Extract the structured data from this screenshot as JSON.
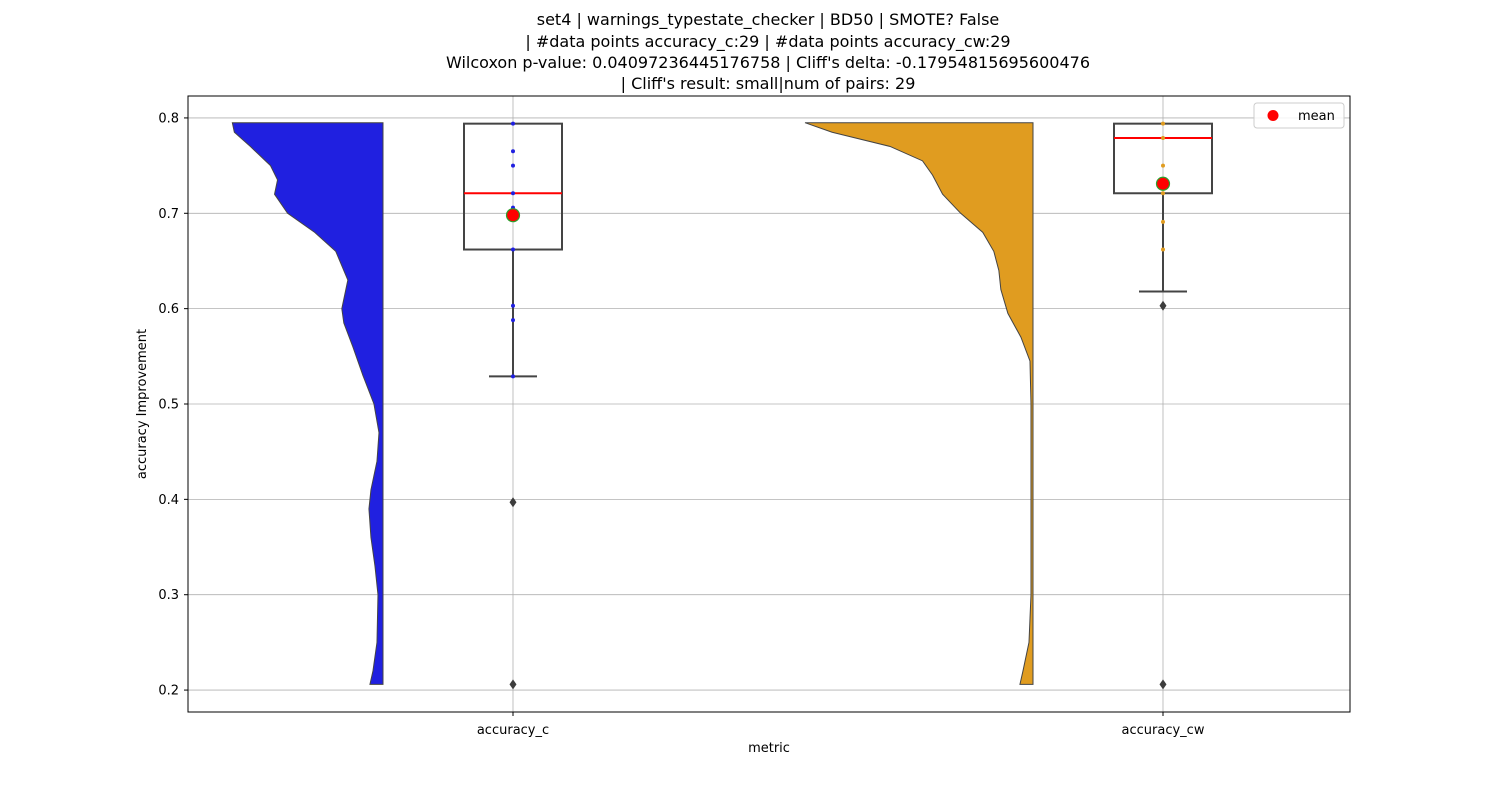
{
  "chart_data": {
    "type": "violin",
    "title_lines": [
      "set4 | warnings_typestate_checker | BD50 | SMOTE? False",
      "| #data points accuracy_c:29 | #data points accuracy_cw:29",
      "Wilcoxon p-value: 0.04097236445176758 | Cliff's delta: -0.17954815695600476",
      "| Cliff's result: small|num of pairs: 29"
    ],
    "xlabel": "metric",
    "ylabel": "accuracy Improvement",
    "categories": [
      "accuracy_c",
      "accuracy_cw"
    ],
    "ylim": [
      0.177,
      0.823
    ],
    "yticks": [
      "0.2",
      "0.3",
      "0.4",
      "0.5",
      "0.6",
      "0.7",
      "0.8"
    ],
    "ytick_values": [
      0.2,
      0.3,
      0.4,
      0.5,
      0.6,
      0.7,
      0.8
    ],
    "grid": true,
    "legend": {
      "position": "upper right",
      "label": "mean",
      "color": "#ff0000"
    },
    "series": [
      {
        "category": "accuracy_c",
        "violin_color": "#2020e0",
        "violin_density": [
          [
            0.206,
            0.013
          ],
          [
            0.22,
            0.01
          ],
          [
            0.25,
            0.006
          ],
          [
            0.3,
            0.005
          ],
          [
            0.33,
            0.008
          ],
          [
            0.36,
            0.012
          ],
          [
            0.39,
            0.014
          ],
          [
            0.41,
            0.012
          ],
          [
            0.44,
            0.006
          ],
          [
            0.47,
            0.004
          ],
          [
            0.5,
            0.009
          ],
          [
            0.53,
            0.02
          ],
          [
            0.56,
            0.03
          ],
          [
            0.585,
            0.039
          ],
          [
            0.6,
            0.041
          ],
          [
            0.63,
            0.035
          ],
          [
            0.66,
            0.047
          ],
          [
            0.68,
            0.068
          ],
          [
            0.7,
            0.095
          ],
          [
            0.72,
            0.108
          ],
          [
            0.735,
            0.105
          ],
          [
            0.75,
            0.112
          ],
          [
            0.77,
            0.132
          ],
          [
            0.785,
            0.148
          ],
          [
            0.795,
            0.15
          ]
        ],
        "box": {
          "q1": 0.662,
          "median": 0.721,
          "q3": 0.794,
          "whisker_low": 0.529,
          "whisker_high": 0.794
        },
        "mean": 0.698,
        "outliers": [
          0.397,
          0.206
        ],
        "points": [
          0.794,
          0.765,
          0.75,
          0.721,
          0.706,
          0.662,
          0.603,
          0.588,
          0.529
        ]
      },
      {
        "category": "accuracy_cw",
        "violin_color": "#e09c20",
        "violin_density": [
          [
            0.206,
            0.013
          ],
          [
            0.22,
            0.01
          ],
          [
            0.25,
            0.004
          ],
          [
            0.3,
            0.002
          ],
          [
            0.4,
            0.002
          ],
          [
            0.5,
            0.002
          ],
          [
            0.545,
            0.003
          ],
          [
            0.57,
            0.012
          ],
          [
            0.595,
            0.025
          ],
          [
            0.62,
            0.032
          ],
          [
            0.64,
            0.034
          ],
          [
            0.66,
            0.039
          ],
          [
            0.68,
            0.05
          ],
          [
            0.7,
            0.072
          ],
          [
            0.72,
            0.09
          ],
          [
            0.74,
            0.1
          ],
          [
            0.755,
            0.11
          ],
          [
            0.77,
            0.142
          ],
          [
            0.785,
            0.2
          ],
          [
            0.795,
            0.227
          ]
        ],
        "box": {
          "q1": 0.721,
          "median": 0.779,
          "q3": 0.794,
          "whisker_low": 0.618,
          "whisker_high": 0.794
        },
        "mean": 0.731,
        "outliers": [
          0.603,
          0.206
        ],
        "points": [
          0.794,
          0.779,
          0.75,
          0.721,
          0.691,
          0.662
        ]
      }
    ]
  }
}
